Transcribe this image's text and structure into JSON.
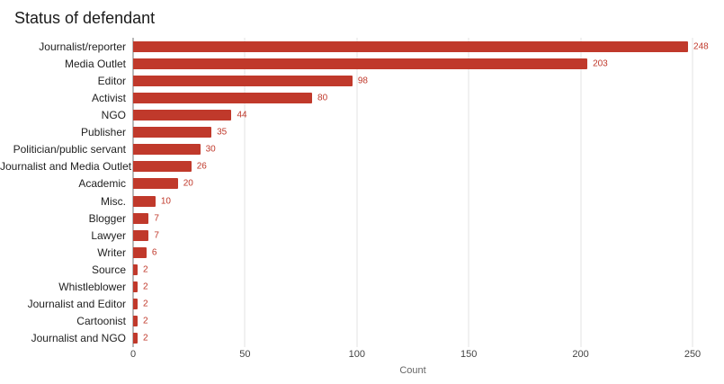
{
  "title": "Status of defendant",
  "chart_data": {
    "type": "bar",
    "orientation": "horizontal",
    "title": "Status of defendant",
    "xlabel": "Count",
    "ylabel": "",
    "categories": [
      "Journalist/reporter",
      "Media Outlet",
      "Editor",
      "Activist",
      "NGO",
      "Publisher",
      "Politician/public servant",
      "Journalist and Media Outlet",
      "Academic",
      "Misc.",
      "Blogger",
      "Lawyer",
      "Writer",
      "Source",
      "Whistleblower",
      "Journalist and Editor",
      "Cartoonist",
      "Journalist and NGO"
    ],
    "values": [
      248,
      203,
      98,
      80,
      44,
      35,
      30,
      26,
      20,
      10,
      7,
      7,
      6,
      2,
      2,
      2,
      2,
      2
    ],
    "xlim": [
      0,
      250
    ],
    "x_ticks": [
      0,
      50,
      100,
      150,
      200,
      250
    ],
    "grid": true,
    "legend": "none",
    "bar_color": "#c0392b",
    "value_label_color": "#c0392b",
    "gridline_color": "#e3e3e3",
    "axis_line_color": "#757575"
  }
}
